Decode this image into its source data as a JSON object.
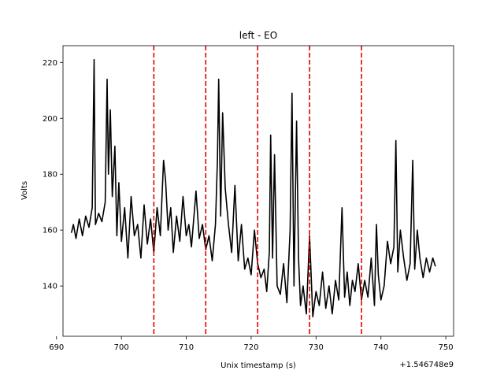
{
  "chart_data": {
    "type": "line",
    "title": "left - EO",
    "xlabel": "Unix timestamp (s)",
    "ylabel": "Volts",
    "x_offset_label": "+1.546748e9",
    "xlim": [
      691.0,
      751.2
    ],
    "ylim": [
      122,
      226
    ],
    "x_ticks": [
      690,
      700,
      710,
      720,
      730,
      740,
      750
    ],
    "x_tick_labels": [
      "690",
      "700",
      "710",
      "720",
      "730",
      "740",
      "750"
    ],
    "y_ticks": [
      140,
      160,
      180,
      200,
      220
    ],
    "y_tick_labels": [
      "140",
      "160",
      "180",
      "200",
      "220"
    ],
    "grid": false,
    "series": [
      {
        "color": "#000000",
        "x": [
          692.3,
          692.6,
          693.0,
          693.5,
          694.0,
          694.5,
          695.0,
          695.5,
          695.8,
          696.0,
          696.5,
          697.0,
          697.5,
          697.8,
          698.0,
          698.3,
          698.6,
          699.0,
          699.3,
          699.6,
          700.0,
          700.5,
          701.0,
          701.5,
          702.0,
          702.5,
          703.0,
          703.5,
          704.0,
          704.5,
          705.0,
          705.5,
          706.0,
          706.5,
          706.8,
          707.2,
          707.6,
          708.0,
          708.5,
          709.0,
          709.5,
          710.0,
          710.4,
          710.8,
          711.5,
          712.0,
          712.5,
          713.0,
          713.5,
          714.0,
          714.5,
          714.8,
          715.0,
          715.3,
          715.6,
          716.0,
          716.5,
          717.0,
          717.5,
          718.0,
          718.5,
          719.0,
          719.5,
          720.0,
          720.5,
          721.0,
          721.5,
          722.0,
          722.4,
          722.8,
          723.0,
          723.3,
          723.6,
          724.0,
          724.5,
          725.0,
          725.5,
          726.0,
          726.3,
          726.6,
          727.0,
          727.3,
          727.6,
          728.0,
          728.5,
          729.0,
          729.5,
          730.0,
          730.5,
          731.0,
          731.5,
          732.0,
          732.5,
          733.0,
          733.5,
          734.0,
          734.4,
          734.8,
          735.2,
          735.6,
          736.0,
          736.5,
          737.0,
          737.5,
          738.0,
          738.5,
          739.0,
          739.3,
          739.6,
          740.0,
          740.5,
          741.0,
          741.5,
          742.0,
          742.3,
          742.6,
          743.0,
          743.5,
          744.0,
          744.5,
          744.9,
          745.2,
          745.6,
          746.0,
          746.5,
          747.0,
          747.5,
          748.0,
          748.4
        ],
        "y": [
          159,
          162,
          157,
          164,
          158,
          165,
          161,
          168,
          221,
          162,
          166,
          163,
          170,
          214,
          180,
          203,
          172,
          190,
          158,
          177,
          156,
          168,
          150,
          172,
          158,
          162,
          150,
          169,
          155,
          164,
          152,
          168,
          158,
          185,
          178,
          160,
          168,
          152,
          165,
          156,
          172,
          158,
          162,
          154,
          174,
          157,
          162,
          153,
          158,
          149,
          162,
          185,
          214,
          165,
          202,
          175,
          162,
          152,
          176,
          149,
          162,
          146,
          150,
          144,
          160,
          148,
          143,
          146,
          138,
          152,
          194,
          150,
          187,
          140,
          137,
          148,
          134,
          160,
          209,
          140,
          199,
          150,
          133,
          140,
          130,
          158,
          129,
          138,
          133,
          145,
          132,
          140,
          130,
          142,
          135,
          168,
          136,
          145,
          133,
          142,
          138,
          148,
          135,
          142,
          136,
          150,
          133,
          162,
          144,
          135,
          140,
          156,
          148,
          154,
          192,
          145,
          160,
          150,
          142,
          148,
          185,
          146,
          160,
          150,
          143,
          150,
          145,
          150,
          147
        ]
      }
    ],
    "vlines": {
      "x": [
        705.0,
        713.0,
        721.0,
        729.0,
        737.0
      ],
      "color": "#e60000",
      "style": "dashed"
    }
  }
}
